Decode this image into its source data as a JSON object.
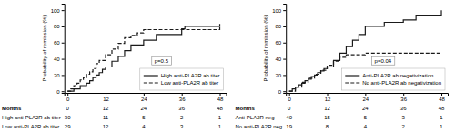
{
  "chart_data": [
    {
      "type": "step",
      "ylabel": "Probability of remission (%)",
      "series": [
        {
          "name": "High anti-PLA2R ab titer",
          "color": "#1a1a1a",
          "line_style": "solid",
          "x": [
            0,
            1,
            2,
            3,
            4,
            5,
            6,
            7,
            8,
            9,
            10,
            11,
            12,
            14,
            16,
            18,
            20,
            24,
            28,
            36,
            37,
            48
          ],
          "values": [
            0,
            0,
            3,
            3,
            7,
            7,
            10,
            13,
            17,
            20,
            23,
            27,
            30,
            37,
            43,
            50,
            57,
            63,
            70,
            77,
            80,
            83
          ]
        },
        {
          "name": "Low anti-PLA2R ab titer",
          "color": "#1a1a1a",
          "line_style": "dashed",
          "x": [
            0,
            1,
            2,
            3,
            4,
            5,
            6,
            7,
            8,
            9,
            10,
            12,
            14,
            16,
            18,
            20,
            22,
            24,
            36,
            48
          ],
          "values": [
            0,
            3,
            7,
            10,
            14,
            17,
            21,
            24,
            28,
            34,
            38,
            45,
            52,
            59,
            66,
            69,
            72,
            76,
            76,
            79
          ]
        }
      ],
      "xlim": [
        -1,
        50
      ],
      "ylim": [
        -2,
        108
      ],
      "xticks": [
        0,
        12,
        24,
        36,
        48
      ],
      "yticks": [
        0,
        20,
        40,
        60,
        80,
        100
      ],
      "legend": "lower right",
      "annotations": [
        {
          "text": "p=0.5"
        }
      ],
      "at_risk": {
        "title": "Months",
        "x": [
          0,
          12,
          24,
          36,
          48
        ],
        "rows": [
          {
            "name": "High anti-PLA2R ab titer",
            "values": [
              30,
              11,
              5,
              2,
              1
            ]
          },
          {
            "name": "Low anti-PLA2R ab titer",
            "values": [
              29,
              12,
              4,
              3,
              1
            ]
          }
        ]
      }
    },
    {
      "type": "step",
      "ylabel": "Probability of remission (%)",
      "series": [
        {
          "name": "Anti-PLA2R ab negativization",
          "color": "#1a1a1a",
          "line_style": "solid",
          "x": [
            0,
            1,
            2,
            3,
            4,
            5,
            6,
            7,
            8,
            9,
            10,
            11,
            12,
            14,
            16,
            18,
            20,
            22,
            24,
            30,
            36,
            40,
            48
          ],
          "values": [
            0,
            3,
            5,
            8,
            10,
            13,
            15,
            18,
            20,
            23,
            25,
            28,
            30,
            38,
            47,
            55,
            63,
            70,
            80,
            85,
            88,
            93,
            100
          ]
        },
        {
          "name": "No anti-PLA2R ab negativization",
          "color": "#1a1a1a",
          "line_style": "dashed",
          "x": [
            0,
            2,
            4,
            6,
            8,
            10,
            12,
            14,
            16,
            18,
            24,
            36,
            48
          ],
          "values": [
            0,
            5,
            11,
            16,
            21,
            26,
            32,
            37,
            42,
            45,
            47,
            47,
            47
          ]
        }
      ],
      "xlim": [
        -1,
        50
      ],
      "ylim": [
        -2,
        108
      ],
      "xticks": [
        0,
        12,
        24,
        36,
        48
      ],
      "yticks": [
        0,
        20,
        40,
        60,
        80,
        100
      ],
      "legend": "lower right",
      "annotations": [
        {
          "text": "p=0.04"
        }
      ],
      "at_risk": {
        "title": "Months",
        "x": [
          0,
          12,
          24,
          36,
          48
        ],
        "rows": [
          {
            "name": "Anti-PLA2R neg",
            "values": [
              40,
              15,
              5,
              3,
              1
            ]
          },
          {
            "name": "No anti-PLA2R neg",
            "values": [
              19,
              8,
              4,
              2,
              1
            ]
          }
        ]
      }
    }
  ]
}
